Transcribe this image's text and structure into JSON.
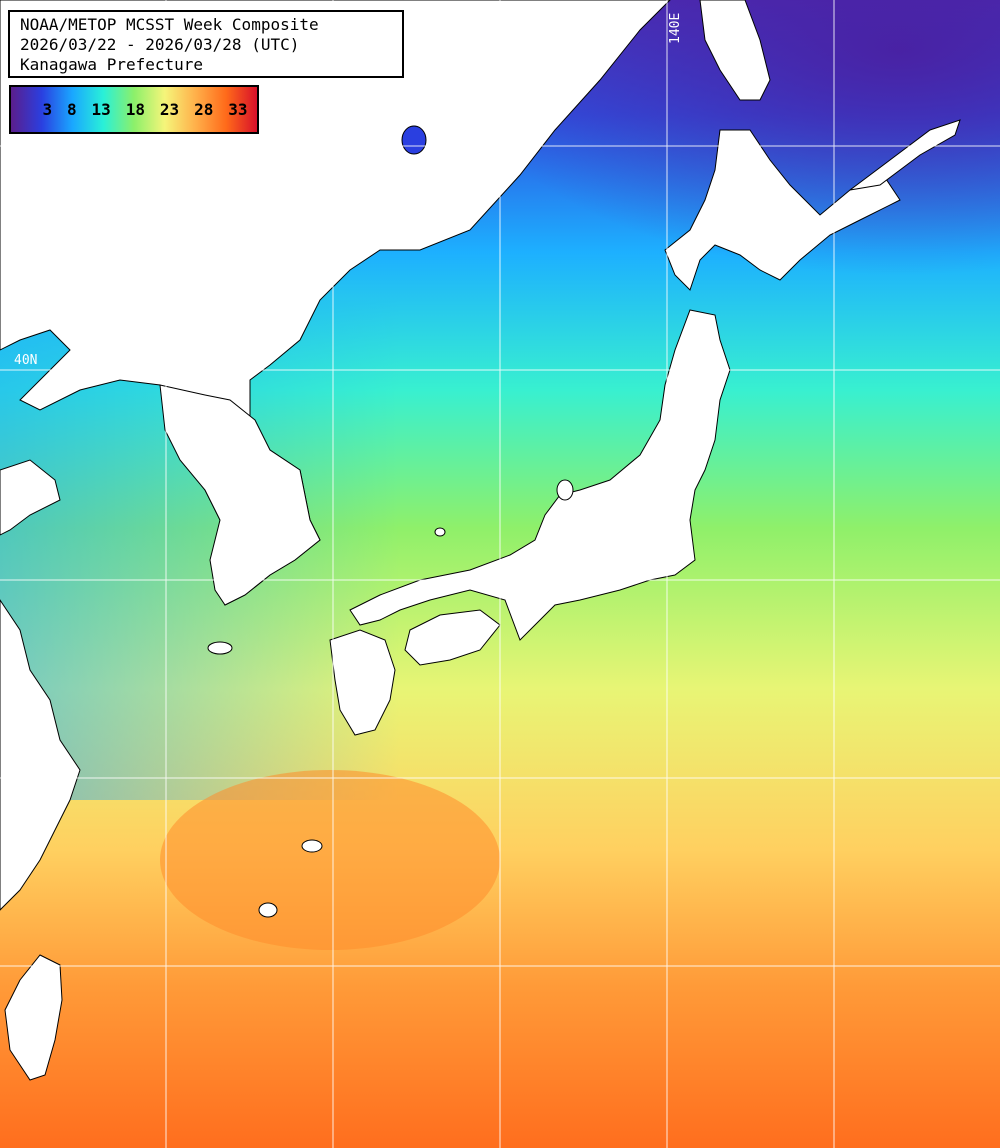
{
  "title": {
    "line1": "NOAA/METOP MCSST Week Composite",
    "line2": "2026/03/22 - 2026/03/28 (UTC)",
    "line3": "Kanagawa Prefecture"
  },
  "colorbar": {
    "ticks": [
      "3",
      "8",
      "13",
      "18",
      "23",
      "28",
      "33"
    ],
    "colors": [
      "#5b1e8c",
      "#2a3fe0",
      "#1aa7ff",
      "#29f0d8",
      "#8cf06a",
      "#f5f57a",
      "#ffb04a",
      "#ff6a1a",
      "#d8102a"
    ]
  },
  "grid_labels": {
    "lon": "140E",
    "lat": "40N"
  },
  "land_color": "#ffffff",
  "grid_color": "#ffffff"
}
